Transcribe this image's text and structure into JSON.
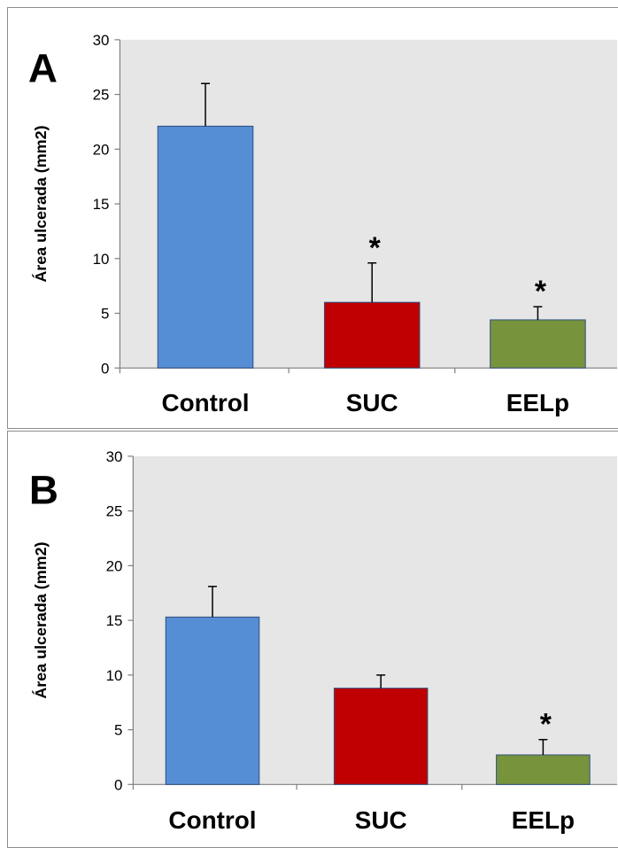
{
  "chart_data": [
    {
      "type": "bar",
      "panel_label": "A",
      "categories": [
        "Control",
        "SUC",
        "EELp"
      ],
      "values": [
        22.1,
        6.0,
        4.4
      ],
      "errors": [
        3.9,
        3.6,
        1.2
      ],
      "significance": [
        "",
        "*",
        "*"
      ],
      "bar_colors": [
        "#558ed5",
        "#c00000",
        "#77933c"
      ],
      "ylabel": "Área ulcerada (mm2)",
      "ylim": [
        0,
        30
      ],
      "yticks": [
        0,
        5,
        10,
        15,
        20,
        25,
        30
      ],
      "plot_background": "#e6e6e6",
      "grid": false,
      "legend": "none"
    },
    {
      "type": "bar",
      "panel_label": "B",
      "categories": [
        "Control",
        "SUC",
        "EELp"
      ],
      "values": [
        15.3,
        8.8,
        2.7
      ],
      "errors": [
        2.8,
        1.2,
        1.4
      ],
      "significance": [
        "",
        "",
        "*"
      ],
      "bar_colors": [
        "#558ed5",
        "#c00000",
        "#77933c"
      ],
      "ylabel": "Área ulcerada (mm2)",
      "ylim": [
        0,
        30
      ],
      "yticks": [
        0,
        5,
        10,
        15,
        20,
        25,
        30
      ],
      "plot_background": "#e6e6e6",
      "grid": false,
      "legend": "none"
    }
  ]
}
